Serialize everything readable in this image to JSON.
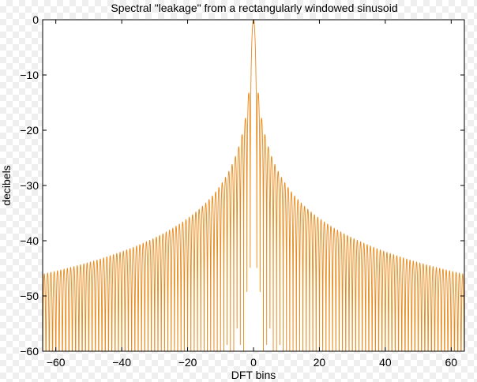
{
  "chart_data": {
    "type": "line",
    "title": "Spectral \"leakage\" from a rectangularly windowed sinusoid",
    "xlabel": "DFT bins",
    "ylabel": "decibels",
    "xlim": [
      -64,
      64
    ],
    "ylim": [
      -60,
      0
    ],
    "xticks": [
      -60,
      -40,
      -20,
      0,
      20,
      40,
      60
    ],
    "xtick_labels": [
      "−60",
      "−40",
      "−20",
      "0",
      "20",
      "40",
      "60"
    ],
    "yticks": [
      0,
      -10,
      -20,
      -30,
      -40,
      -50,
      -60
    ],
    "ytick_labels": [
      "0",
      "−10",
      "−20",
      "−30",
      "−40",
      "−50",
      "−60"
    ],
    "grid": false,
    "series": [
      {
        "color": "#e8891a",
        "function": "20*log10(|sin(pi*x)/(pi*x)|), sampled densely, floored at -60 dB",
        "x_range": [
          -64,
          64
        ],
        "peak_db": 0,
        "sidelobe_peaks_db": [
          {
            "x": 1.5,
            "y": -13.5
          },
          {
            "x": 5.5,
            "y": -24.8
          },
          {
            "x": 10.5,
            "y": -30.4
          },
          {
            "x": 20.5,
            "y": -36.2
          },
          {
            "x": 40.5,
            "y": -42.1
          },
          {
            "x": 63.5,
            "y": -46.0
          }
        ]
      }
    ]
  }
}
